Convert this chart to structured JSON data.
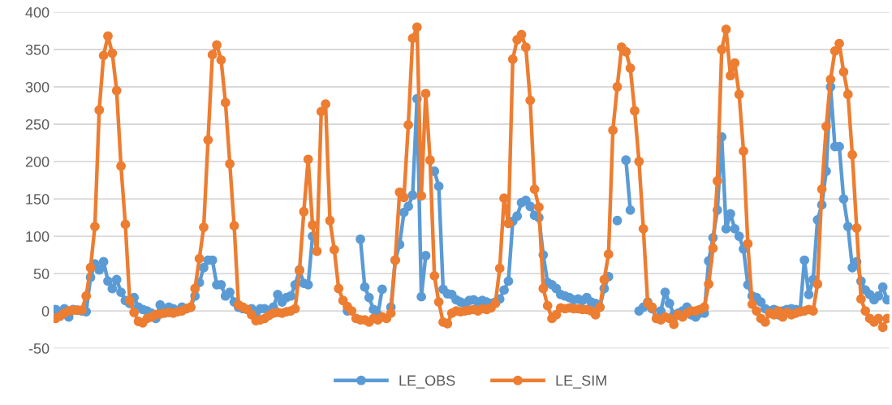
{
  "chart_data": {
    "type": "line",
    "categories": [
      null,
      null,
      null,
      null,
      null,
      null,
      null,
      null,
      null,
      null,
      null,
      null,
      null,
      null,
      null,
      null,
      null,
      null,
      null,
      null,
      null,
      null,
      null,
      null,
      null,
      null,
      null,
      null,
      null,
      null,
      null,
      null,
      null,
      null,
      null,
      null,
      null,
      null,
      null,
      null,
      null,
      null,
      null,
      null,
      null,
      null,
      null,
      null,
      null,
      null,
      null,
      null,
      null,
      null,
      null,
      null,
      null,
      null,
      null,
      null,
      null,
      null,
      null,
      null,
      null,
      null,
      null,
      null,
      null,
      null,
      null,
      null,
      null,
      null,
      null,
      null,
      null,
      null,
      null,
      null,
      null,
      null,
      null,
      null,
      null,
      null,
      null,
      null,
      null,
      null,
      null,
      null,
      null,
      null,
      null,
      null,
      null,
      null,
      null,
      null,
      null,
      null,
      null,
      null,
      null,
      null,
      null,
      null,
      null,
      null,
      null,
      null,
      null,
      null,
      null,
      null,
      null,
      null,
      null,
      null,
      null,
      null,
      null,
      null,
      null,
      null,
      null,
      null,
      null,
      null,
      null,
      null,
      null,
      null,
      null,
      null,
      null,
      null,
      null,
      null,
      null,
      null,
      null,
      null,
      null,
      null,
      null,
      null,
      null,
      null,
      null,
      null,
      null,
      null,
      null,
      null,
      null,
      null,
      null,
      null,
      null,
      null,
      null,
      null,
      null,
      null,
      null,
      null,
      null,
      null,
      null,
      null,
      null,
      null,
      null,
      null,
      null,
      null,
      null,
      null,
      null,
      null,
      null,
      null,
      null,
      null,
      null,
      null,
      null,
      null,
      null,
      null
    ],
    "series": [
      {
        "name": "LE_OBS",
        "color": "#5b9bd5",
        "values": [
          2,
          -2,
          3,
          -8,
          2,
          1,
          0,
          -1,
          45,
          63,
          55,
          66,
          40,
          30,
          42,
          25,
          14,
          10,
          18,
          5,
          2,
          0,
          -3,
          -10,
          8,
          2,
          5,
          3,
          0,
          5,
          3,
          5,
          20,
          38,
          58,
          68,
          68,
          35,
          35,
          20,
          25,
          12,
          5,
          3,
          2,
          3,
          -3,
          3,
          3,
          0,
          5,
          22,
          12,
          18,
          20,
          35,
          55,
          37,
          35,
          100,
          null,
          null,
          null,
          null,
          null,
          null,
          null,
          0,
          null,
          null,
          96,
          32,
          18,
          2,
          -5,
          29,
          null,
          5,
          68,
          89,
          132,
          140,
          155,
          284,
          19,
          74,
          null,
          187,
          167,
          29,
          23,
          22,
          15,
          12,
          10,
          14,
          15,
          12,
          14,
          12,
          10,
          12,
          16,
          28,
          40,
          120,
          127,
          145,
          148,
          140,
          128,
          125,
          75,
          38,
          35,
          30,
          22,
          20,
          18,
          15,
          16,
          14,
          18,
          12,
          10,
          5,
          30,
          46,
          null,
          121,
          null,
          202,
          135,
          null,
          0,
          5,
          12,
          3,
          -10,
          0,
          25,
          10,
          -5,
          -3,
          0,
          5,
          -5,
          -8,
          -3,
          -3,
          67,
          98,
          135,
          233,
          110,
          130,
          110,
          100,
          83,
          35,
          20,
          18,
          12,
          3,
          0,
          2,
          -5,
          0,
          2,
          3,
          2,
          0,
          68,
          22,
          42,
          122,
          142,
          187,
          300,
          220,
          220,
          150,
          113,
          58,
          66,
          40,
          28,
          22,
          15,
          20,
          32,
          15
        ]
      },
      {
        "name": "LE_SIM",
        "color": "#ed7d31",
        "values": [
          -10,
          -7,
          -3,
          0,
          1,
          1,
          1,
          20,
          58,
          113,
          269,
          342,
          368,
          345,
          295,
          194,
          116,
          14,
          -2,
          -14,
          -16,
          -10,
          -8,
          -5,
          -4,
          -3,
          -2,
          -3,
          -1,
          0,
          3,
          5,
          30,
          70,
          112,
          229,
          343,
          356,
          336,
          279,
          197,
          114,
          8,
          5,
          2,
          -5,
          -13,
          -12,
          -10,
          -6,
          -3,
          -2,
          -3,
          -1,
          0,
          3,
          54,
          133,
          203,
          115,
          80,
          267,
          277,
          121,
          82,
          30,
          14,
          6,
          0,
          -10,
          -12,
          -12,
          -15,
          -10,
          -12,
          -8,
          -10,
          -3,
          68,
          159,
          152,
          249,
          365,
          380,
          154,
          291,
          202,
          47,
          12,
          -15,
          -17,
          -3,
          0,
          -1,
          0,
          1,
          2,
          0,
          3,
          2,
          4,
          10,
          57,
          151,
          117,
          337,
          363,
          370,
          353,
          282,
          163,
          139,
          30,
          7,
          -10,
          -5,
          4,
          3,
          4,
          3,
          3,
          2,
          2,
          0,
          -5,
          5,
          42,
          76,
          242,
          300,
          353,
          347,
          325,
          268,
          200,
          110,
          10,
          5,
          -10,
          -12,
          -8,
          -10,
          -18,
          -5,
          -8,
          -3,
          0,
          0,
          2,
          5,
          36,
          84,
          174,
          350,
          377,
          315,
          332,
          290,
          214,
          90,
          9,
          0,
          -10,
          -15,
          -3,
          -5,
          0,
          -8,
          -2,
          -5,
          -3,
          -1,
          0,
          2,
          0,
          36,
          163,
          247,
          310,
          348,
          358,
          320,
          290,
          209,
          111,
          16,
          0,
          -10,
          -15,
          -10,
          -22,
          -10
        ]
      }
    ],
    "ylim": [
      -50,
      400
    ],
    "yticks": [
      -50,
      0,
      50,
      100,
      150,
      200,
      250,
      300,
      350,
      400
    ],
    "grid": "y",
    "legend": "bottom",
    "marker": "circle",
    "line_style": "solid"
  }
}
